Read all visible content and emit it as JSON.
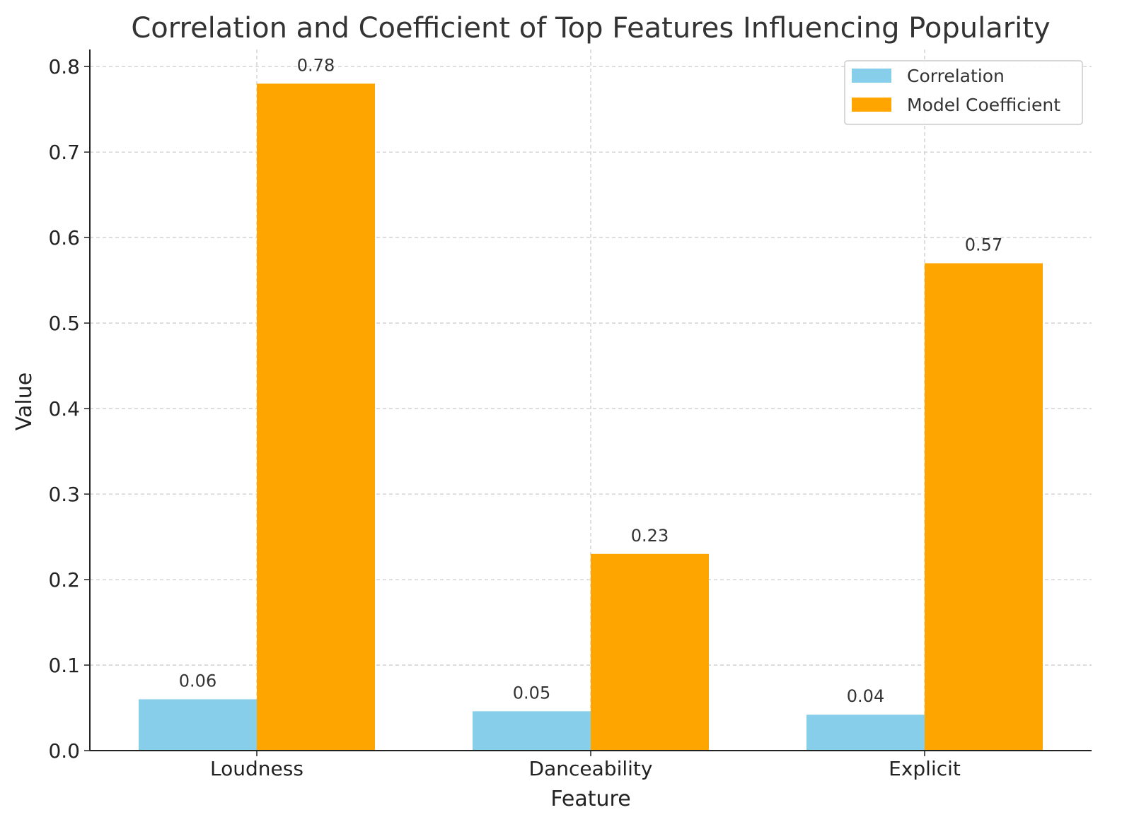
{
  "chart_data": {
    "type": "bar",
    "title": "Correlation and Coefficient of Top Features Influencing Popularity",
    "xlabel": "Feature",
    "ylabel": "Value",
    "categories": [
      "Loudness",
      "Danceability",
      "Explicit"
    ],
    "series": [
      {
        "name": "Correlation",
        "color": "#87CEEB",
        "values": [
          0.06,
          0.046,
          0.042
        ],
        "labels": [
          "0.06",
          "0.05",
          "0.04"
        ]
      },
      {
        "name": "Model Coefficient",
        "color": "#FFA500",
        "values": [
          0.78,
          0.23,
          0.57
        ],
        "labels": [
          "0.78",
          "0.23",
          "0.57"
        ]
      }
    ],
    "ylim": [
      0,
      0.82
    ],
    "yticks": [
      "0.0",
      "0.1",
      "0.2",
      "0.3",
      "0.4",
      "0.5",
      "0.6",
      "0.7",
      "0.8"
    ],
    "grid": true,
    "legend_position": "top-right"
  }
}
